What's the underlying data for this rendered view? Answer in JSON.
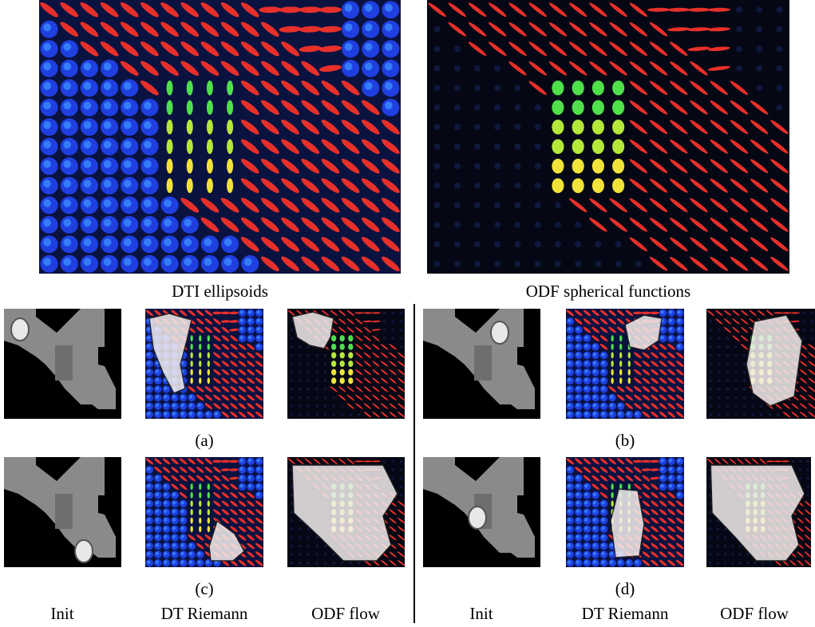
{
  "figure": {
    "top_captions": {
      "dti": "DTI ellipsoids",
      "odf": "ODF spherical functions"
    },
    "sub_labels": {
      "a": "(a)",
      "b": "(b)",
      "c": "(c)",
      "d": "(d)"
    },
    "column_labels": {
      "init": "Init",
      "dt_riemann": "DT Riemann",
      "odf_flow": "ODF flow"
    },
    "colors": {
      "background_iso": "#1f3fe0",
      "fiber": "#e8302a",
      "crossing_green": "#4fe04a",
      "crossing_yellow": "#f2e33a",
      "segmentation": "#f4eeee",
      "gray_region": "#8a8a8a"
    }
  }
}
